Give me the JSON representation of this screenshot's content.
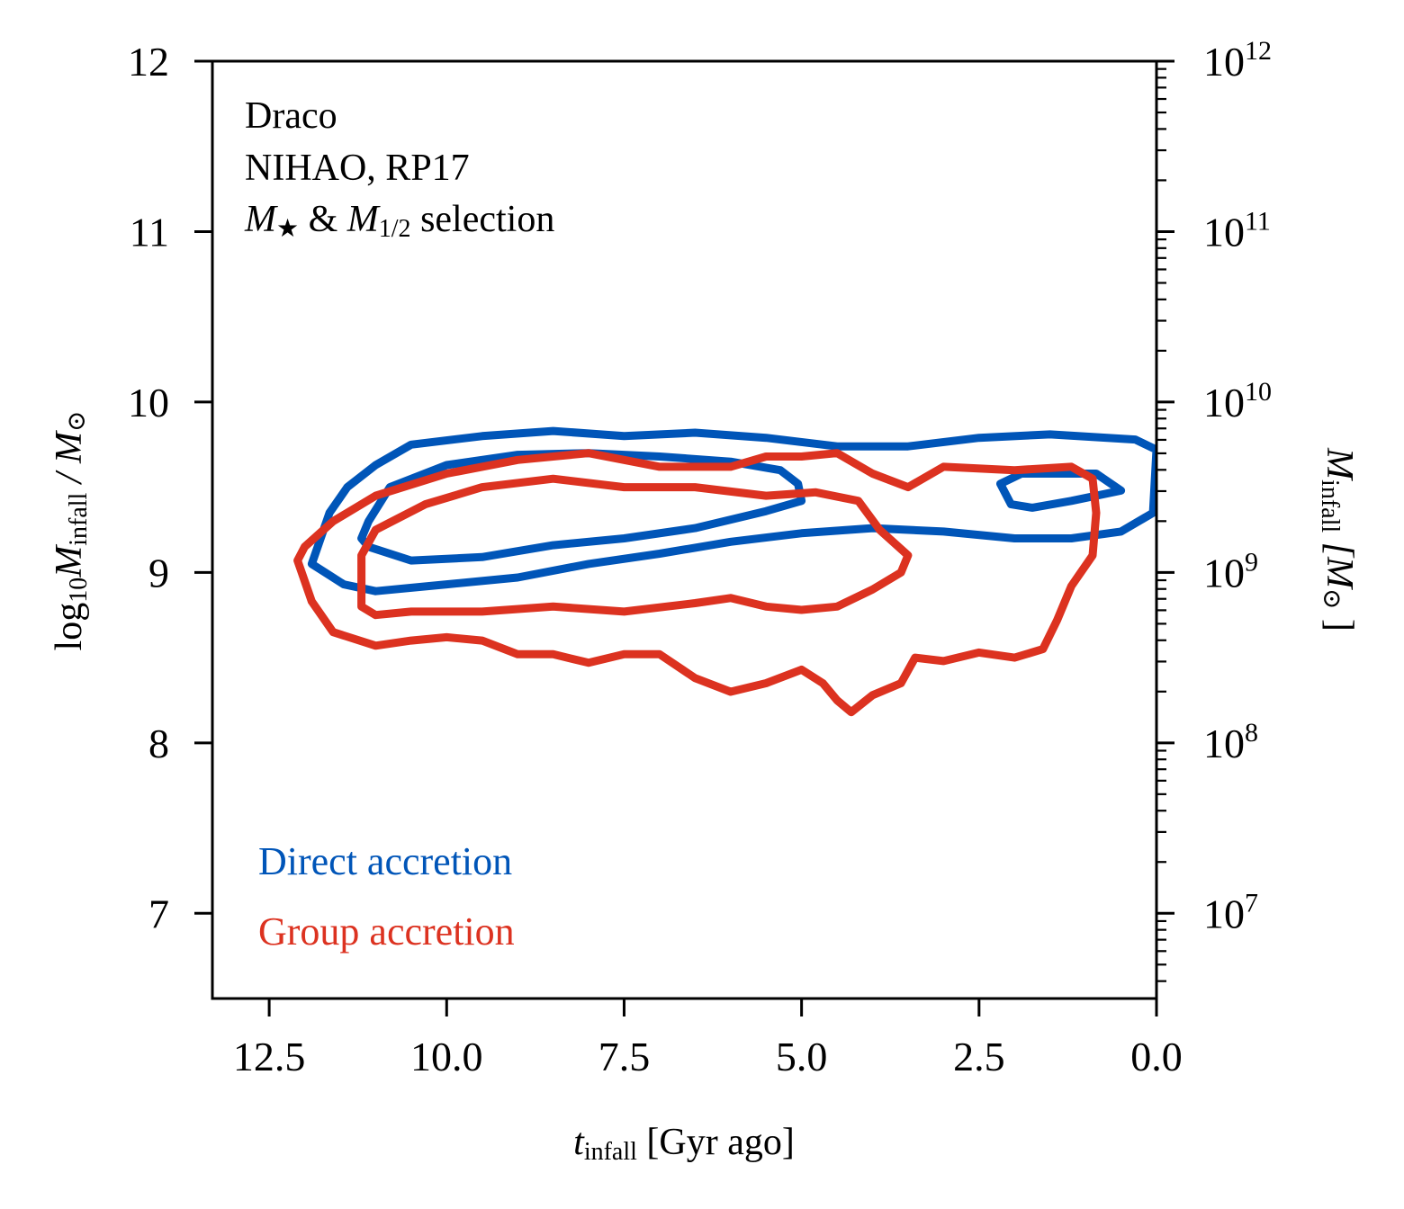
{
  "chart_data": {
    "type": "contour",
    "annotation_lines": [
      "Draco",
      "NIHAO, RP17",
      "M★ & M1/2 selection"
    ],
    "annotation": {
      "line1": "Draco",
      "line2": "NIHAO, RP17",
      "line3_m": "M",
      "line3_star": "★",
      "line3_amp": " & ",
      "line3_m2": "M",
      "line3_half": "1/2",
      "line3_sel": " selection"
    },
    "xlabel": {
      "var": "t",
      "sub": "infall",
      "unit": " [Gyr ago]"
    },
    "ylabel": {
      "pre": "log",
      "pre_sub": "10",
      "var": "M",
      "sub": "infall",
      "rest": " / M",
      "sun": "⊙"
    },
    "ylabel_right": {
      "var": "M",
      "sub": "infall",
      "unit_open": " [M",
      "sun": "⊙",
      "unit_close": " ]"
    },
    "xlim": [
      13.3,
      0.0
    ],
    "ylim": [
      6.5,
      12.0
    ],
    "x_ticks": [
      12.5,
      10.0,
      7.5,
      5.0,
      2.5,
      0.0
    ],
    "x_tick_labels": [
      "12.5",
      "10.0",
      "7.5",
      "5.0",
      "2.5",
      "0.0"
    ],
    "y_ticks": [
      7,
      8,
      9,
      10,
      11,
      12
    ],
    "y_tick_labels": [
      "7",
      "8",
      "9",
      "10",
      "11",
      "12"
    ],
    "right_ticks": [
      7,
      8,
      9,
      10,
      11,
      12
    ],
    "right_tick_labels": [
      {
        "base": "10",
        "exp": "7"
      },
      {
        "base": "10",
        "exp": "8"
      },
      {
        "base": "10",
        "exp": "9"
      },
      {
        "base": "10",
        "exp": "10"
      },
      {
        "base": "10",
        "exp": "11"
      },
      {
        "base": "10",
        "exp": "12"
      }
    ],
    "legend": [
      {
        "label": "Direct accretion",
        "color": "#0055b8"
      },
      {
        "label": "Group accretion",
        "color": "#dc3220"
      }
    ],
    "series": [
      {
        "name": "Direct accretion",
        "color": "#0055b8",
        "contours": [
          [
            [
              11.65,
              9.35
            ],
            [
              11.9,
              9.05
            ],
            [
              11.45,
              8.93
            ],
            [
              11.0,
              8.89
            ],
            [
              10.0,
              8.93
            ],
            [
              9.0,
              8.97
            ],
            [
              8.0,
              9.05
            ],
            [
              7.0,
              9.11
            ],
            [
              6.0,
              9.18
            ],
            [
              5.0,
              9.23
            ],
            [
              4.0,
              9.26
            ],
            [
              3.0,
              9.24
            ],
            [
              2.0,
              9.2
            ],
            [
              1.2,
              9.2
            ],
            [
              0.5,
              9.24
            ],
            [
              0.05,
              9.35
            ],
            [
              0.0,
              9.72
            ],
            [
              0.3,
              9.78
            ],
            [
              1.5,
              9.81
            ],
            [
              2.5,
              9.79
            ],
            [
              3.5,
              9.74
            ],
            [
              4.5,
              9.74
            ],
            [
              5.5,
              9.79
            ],
            [
              6.5,
              9.82
            ],
            [
              7.5,
              9.8
            ],
            [
              8.5,
              9.83
            ],
            [
              9.5,
              9.8
            ],
            [
              10.5,
              9.75
            ],
            [
              11.0,
              9.63
            ],
            [
              11.4,
              9.5
            ],
            [
              11.65,
              9.35
            ]
          ],
          [
            [
              11.1,
              9.15
            ],
            [
              10.5,
              9.07
            ],
            [
              9.5,
              9.09
            ],
            [
              8.5,
              9.16
            ],
            [
              7.5,
              9.2
            ],
            [
              6.5,
              9.26
            ],
            [
              5.5,
              9.36
            ],
            [
              5.0,
              9.42
            ],
            [
              5.05,
              9.52
            ],
            [
              5.3,
              9.6
            ],
            [
              6.0,
              9.65
            ],
            [
              7.0,
              9.68
            ],
            [
              8.0,
              9.7
            ],
            [
              9.0,
              9.69
            ],
            [
              10.0,
              9.63
            ],
            [
              10.8,
              9.5
            ],
            [
              11.1,
              9.3
            ],
            [
              11.2,
              9.2
            ],
            [
              11.1,
              9.15
            ]
          ],
          [
            [
              2.2,
              9.52
            ],
            [
              2.05,
              9.4
            ],
            [
              1.75,
              9.38
            ],
            [
              1.2,
              9.42
            ],
            [
              0.5,
              9.48
            ],
            [
              0.85,
              9.58
            ],
            [
              1.3,
              9.58
            ],
            [
              1.9,
              9.58
            ],
            [
              2.2,
              9.52
            ]
          ]
        ]
      },
      {
        "name": "Group accretion",
        "color": "#dc3220",
        "contours": [
          [
            [
              12.1,
              9.07
            ],
            [
              11.9,
              8.83
            ],
            [
              11.6,
              8.65
            ],
            [
              11.0,
              8.57
            ],
            [
              10.5,
              8.6
            ],
            [
              10.0,
              8.62
            ],
            [
              9.5,
              8.6
            ],
            [
              9.0,
              8.52
            ],
            [
              8.5,
              8.52
            ],
            [
              8.0,
              8.47
            ],
            [
              7.5,
              8.52
            ],
            [
              7.0,
              8.52
            ],
            [
              6.5,
              8.38
            ],
            [
              6.0,
              8.3
            ],
            [
              5.5,
              8.35
            ],
            [
              5.0,
              8.43
            ],
            [
              4.7,
              8.35
            ],
            [
              4.5,
              8.25
            ],
            [
              4.3,
              8.18
            ],
            [
              4.0,
              8.28
            ],
            [
              3.6,
              8.35
            ],
            [
              3.4,
              8.5
            ],
            [
              3.0,
              8.48
            ],
            [
              2.5,
              8.53
            ],
            [
              2.0,
              8.5
            ],
            [
              1.6,
              8.55
            ],
            [
              1.4,
              8.72
            ],
            [
              1.2,
              8.92
            ],
            [
              0.9,
              9.1
            ],
            [
              0.85,
              9.35
            ],
            [
              0.9,
              9.55
            ],
            [
              1.2,
              9.62
            ],
            [
              2.0,
              9.6
            ],
            [
              3.0,
              9.62
            ],
            [
              3.5,
              9.5
            ],
            [
              4.0,
              9.58
            ],
            [
              4.5,
              9.7
            ],
            [
              5.0,
              9.68
            ],
            [
              5.5,
              9.68
            ],
            [
              6.0,
              9.62
            ],
            [
              7.0,
              9.62
            ],
            [
              8.0,
              9.7
            ],
            [
              9.0,
              9.66
            ],
            [
              10.0,
              9.58
            ],
            [
              11.0,
              9.45
            ],
            [
              11.6,
              9.3
            ],
            [
              12.0,
              9.15
            ],
            [
              12.1,
              9.07
            ]
          ],
          [
            [
              11.2,
              8.8
            ],
            [
              11.0,
              8.75
            ],
            [
              10.5,
              8.77
            ],
            [
              9.5,
              8.77
            ],
            [
              8.5,
              8.8
            ],
            [
              7.5,
              8.77
            ],
            [
              6.5,
              8.82
            ],
            [
              6.0,
              8.85
            ],
            [
              5.5,
              8.8
            ],
            [
              5.0,
              8.78
            ],
            [
              4.5,
              8.8
            ],
            [
              4.0,
              8.9
            ],
            [
              3.6,
              9.0
            ],
            [
              3.5,
              9.1
            ],
            [
              3.9,
              9.25
            ],
            [
              4.2,
              9.42
            ],
            [
              4.8,
              9.47
            ],
            [
              5.5,
              9.45
            ],
            [
              6.5,
              9.5
            ],
            [
              7.5,
              9.5
            ],
            [
              8.5,
              9.55
            ],
            [
              9.5,
              9.5
            ],
            [
              10.3,
              9.4
            ],
            [
              11.0,
              9.25
            ],
            [
              11.2,
              9.1
            ],
            [
              11.2,
              8.8
            ]
          ]
        ]
      }
    ]
  }
}
